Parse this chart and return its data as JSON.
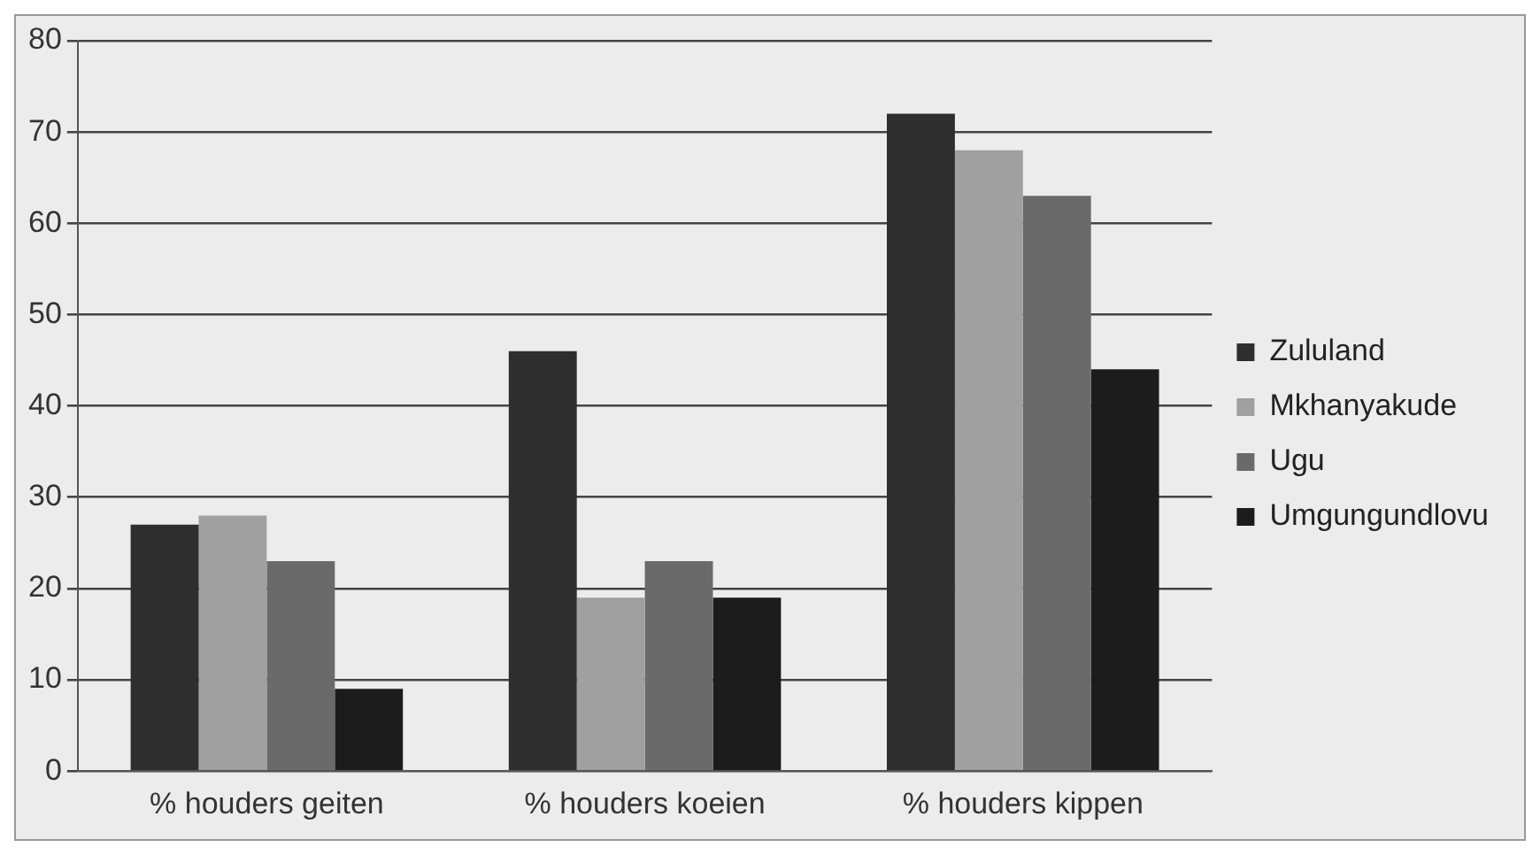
{
  "chart_data": {
    "type": "bar",
    "categories": [
      "% houders geiten",
      "% houders koeien",
      "% houders kippen"
    ],
    "series": [
      {
        "name": "Zululand",
        "color": "#2e2e2e",
        "values": [
          27,
          46,
          72
        ]
      },
      {
        "name": "Mkhanyakude",
        "color": "#a0a0a0",
        "values": [
          28,
          19,
          68
        ]
      },
      {
        "name": "Ugu",
        "color": "#6a6a6a",
        "values": [
          23,
          23,
          63
        ]
      },
      {
        "name": "Umgungundlovu",
        "color": "#1c1c1c",
        "values": [
          9,
          19,
          44
        ]
      }
    ],
    "ylim": [
      0,
      80
    ],
    "yticks": [
      0,
      10,
      20,
      30,
      40,
      50,
      60,
      70,
      80
    ],
    "grid": "y",
    "legend": "right"
  }
}
